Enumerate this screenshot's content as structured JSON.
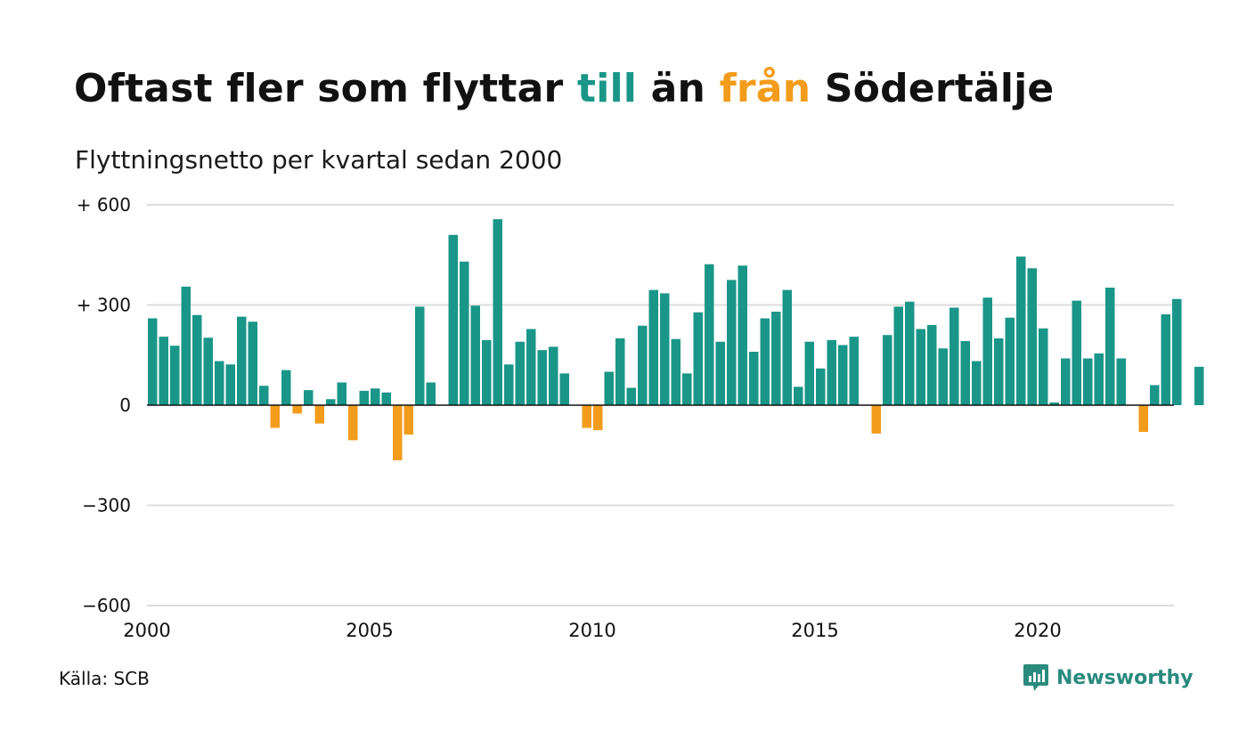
{
  "header": {
    "title_part1": "Oftast fler som flyttar",
    "title_till": "till",
    "title_part2": "än",
    "title_fran": "från",
    "title_part3": "Södertälje",
    "subtitle": "Flyttningsnetto per kvartal sedan 2000"
  },
  "footer": {
    "source": "Källa: SCB",
    "brand": "Newsworthy",
    "brand_icon": "newsworthy-logo-icon"
  },
  "colors": {
    "positive": "#1a9688",
    "negative": "#f39c1c",
    "grid": "#dddddd",
    "baseline": "#111111"
  },
  "chart_data": {
    "type": "bar",
    "title": "Oftast fler som flyttar till än från Södertälje",
    "subtitle": "Flyttningsnetto per kvartal sedan 2000",
    "xlabel": "",
    "ylabel": "",
    "ylim": [
      -600,
      600
    ],
    "xlim": [
      2000,
      2023
    ],
    "yticks": [
      {
        "value": 600,
        "label": "+ 600"
      },
      {
        "value": 300,
        "label": "+ 300"
      },
      {
        "value": 0,
        "label": "0"
      },
      {
        "value": -300,
        "label": "−300"
      },
      {
        "value": -600,
        "label": "−600"
      }
    ],
    "xticks": [
      {
        "value": 2000,
        "label": "2000"
      },
      {
        "value": 2005,
        "label": "2005"
      },
      {
        "value": 2010,
        "label": "2010"
      },
      {
        "value": 2015,
        "label": "2015"
      },
      {
        "value": 2020,
        "label": "2020"
      }
    ],
    "grid": true,
    "legend": "none",
    "start_year": 2000,
    "periods_per_year": 4,
    "values": [
      260,
      205,
      178,
      355,
      270,
      202,
      132,
      122,
      265,
      250,
      58,
      -68,
      105,
      -25,
      45,
      -55,
      18,
      68,
      -105,
      43,
      50,
      38,
      -165,
      -88,
      295,
      68,
      0,
      510,
      430,
      298,
      195,
      557,
      122,
      190,
      228,
      165,
      175,
      95,
      0,
      -68,
      -75,
      100,
      200,
      52,
      238,
      345,
      335,
      198,
      95,
      278,
      422,
      190,
      375,
      418,
      160,
      260,
      280,
      345,
      55,
      190,
      110,
      195,
      180,
      205,
      0,
      -85,
      210,
      295,
      310,
      228,
      240,
      170,
      292,
      192,
      132,
      322,
      200,
      262,
      445,
      410,
      230,
      8,
      140,
      313,
      140,
      155,
      352,
      140,
      0,
      -80,
      60,
      272,
      318,
      0,
      115
    ]
  }
}
